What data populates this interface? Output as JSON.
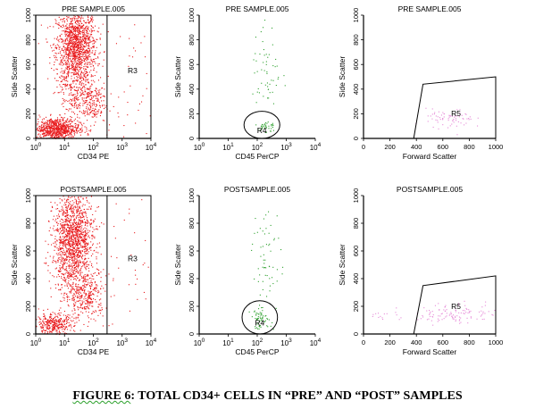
{
  "figure": {
    "caption_prefix": "FIGURE 6",
    "caption_rest": ":  TOTAL CD34+ CELLS IN “PRE” AND “POST” SAMPLES"
  },
  "colors": {
    "red_events": "#e8191c",
    "green_events": "#2ea12e",
    "pink_events": "#e68ad8",
    "gate": "#000000"
  },
  "chart_data": [
    {
      "type": "scatter",
      "title": "PRE SAMPLE.005",
      "xlabel": "CD34 PE",
      "ylabel": "Side Scatter",
      "xscale": "log",
      "xlim": [
        1,
        10000
      ],
      "ylim": [
        0,
        1000
      ],
      "xticks": [
        "10^0",
        "10^1",
        "10^2",
        "10^3",
        "10^4"
      ],
      "yticks": [
        "0",
        "200",
        "400",
        "600",
        "800",
        "1000"
      ],
      "gate": {
        "name": "R3",
        "shape": "rectangle",
        "x_range": [
          300,
          10000
        ],
        "y_range": [
          0,
          1000
        ]
      },
      "series": [
        {
          "color": "#e8191c",
          "clusters": [
            {
              "x_center": 25,
              "y_center": 750,
              "x_spread": 0.35,
              "y_spread": 150,
              "count": 1300
            },
            {
              "x_center": 5,
              "y_center": 80,
              "x_spread": 0.4,
              "y_spread": 45,
              "count": 800
            },
            {
              "x_center": 70,
              "y_center": 300,
              "x_spread": 0.3,
              "y_spread": 90,
              "count": 250
            },
            {
              "x_center": 20,
              "y_center": 450,
              "x_spread": 0.3,
              "y_spread": 150,
              "count": 200
            },
            {
              "x_center": 1500,
              "y_center": 500,
              "x_spread": 0.5,
              "y_spread": 350,
              "count": 40
            }
          ]
        }
      ]
    },
    {
      "type": "scatter",
      "title": "PRE SAMPLE.005",
      "xlabel": "CD45 PerCP",
      "ylabel": "Side Scatter",
      "xscale": "log",
      "xlim": [
        1,
        10000
      ],
      "ylim": [
        0,
        1000
      ],
      "xticks": [
        "10^0",
        "10^1",
        "10^2",
        "10^3",
        "10^4"
      ],
      "yticks": [
        "0",
        "200",
        "400",
        "600",
        "800",
        "1000"
      ],
      "gate": {
        "name": "R4",
        "shape": "ellipse",
        "x_range": [
          35,
          600
        ],
        "y_range": [
          0,
          220
        ]
      },
      "series": [
        {
          "color": "#2ea12e",
          "clusters": [
            {
              "x_center": 200,
              "y_center": 100,
              "x_spread": 0.15,
              "y_spread": 25,
              "count": 35
            },
            {
              "x_center": 200,
              "y_center": 550,
              "x_spread": 0.25,
              "y_spread": 200,
              "count": 55
            }
          ]
        }
      ]
    },
    {
      "type": "scatter",
      "title": "PRE SAMPLE.005",
      "xlabel": "Forward Scatter",
      "ylabel": "Side Scatter",
      "xscale": "linear",
      "xlim": [
        0,
        1000
      ],
      "ylim": [
        0,
        1000
      ],
      "xticks": [
        "0",
        "200",
        "400",
        "600",
        "800",
        "1000"
      ],
      "yticks": [
        "0",
        "200",
        "400",
        "600",
        "800",
        "1000"
      ],
      "gate": {
        "name": "R5",
        "shape": "polygon",
        "vertices": [
          [
            380,
            0
          ],
          [
            450,
            440
          ],
          [
            1000,
            500
          ],
          [
            1000,
            0
          ]
        ]
      },
      "series": [
        {
          "color": "#e68ad8",
          "clusters": [
            {
              "x_center": 650,
              "y_center": 160,
              "x_spread": 90,
              "y_spread": 40,
              "count": 70
            }
          ]
        }
      ]
    },
    {
      "type": "scatter",
      "title": "POSTSAMPLE.005",
      "xlabel": "CD34 PE",
      "ylabel": "Side Scatter",
      "xscale": "log",
      "xlim": [
        1,
        10000
      ],
      "ylim": [
        0,
        1000
      ],
      "xticks": [
        "10^0",
        "10^1",
        "10^2",
        "10^3",
        "10^4"
      ],
      "yticks": [
        "0",
        "200",
        "400",
        "600",
        "800",
        "1000"
      ],
      "gate": {
        "name": "R3",
        "shape": "rectangle",
        "x_range": [
          300,
          10000
        ],
        "y_range": [
          0,
          1000
        ]
      },
      "series": [
        {
          "color": "#e8191c",
          "clusters": [
            {
              "x_center": 20,
              "y_center": 700,
              "x_spread": 0.35,
              "y_spread": 160,
              "count": 1300
            },
            {
              "x_center": 4,
              "y_center": 70,
              "x_spread": 0.35,
              "y_spread": 40,
              "count": 350
            },
            {
              "x_center": 60,
              "y_center": 280,
              "x_spread": 0.3,
              "y_spread": 90,
              "count": 300
            },
            {
              "x_center": 15,
              "y_center": 400,
              "x_spread": 0.3,
              "y_spread": 150,
              "count": 200
            },
            {
              "x_center": 1500,
              "y_center": 450,
              "x_spread": 0.5,
              "y_spread": 350,
              "count": 40
            }
          ]
        }
      ]
    },
    {
      "type": "scatter",
      "title": "POSTSAMPLE.005",
      "xlabel": "CD45 PerCP",
      "ylabel": "Side Scatter",
      "xscale": "log",
      "xlim": [
        1,
        10000
      ],
      "ylim": [
        0,
        1000
      ],
      "xticks": [
        "10^0",
        "10^1",
        "10^2",
        "10^3",
        "10^4"
      ],
      "yticks": [
        "0",
        "200",
        "400",
        "600",
        "800",
        "1000"
      ],
      "gate": {
        "name": "R4",
        "shape": "ellipse",
        "x_range": [
          30,
          500
        ],
        "y_range": [
          0,
          240
        ]
      },
      "series": [
        {
          "color": "#2ea12e",
          "clusters": [
            {
              "x_center": 130,
              "y_center": 110,
              "x_spread": 0.18,
              "y_spread": 35,
              "count": 60
            },
            {
              "x_center": 200,
              "y_center": 550,
              "x_spread": 0.25,
              "y_spread": 200,
              "count": 60
            }
          ]
        }
      ]
    },
    {
      "type": "scatter",
      "title": "POSTSAMPLE.005",
      "xlabel": "Forward Scatter",
      "ylabel": "Side Scatter",
      "xscale": "linear",
      "xlim": [
        0,
        1000
      ],
      "ylim": [
        0,
        1000
      ],
      "xticks": [
        "0",
        "200",
        "400",
        "600",
        "800",
        "1000"
      ],
      "yticks": [
        "0",
        "200",
        "400",
        "600",
        "800",
        "1000"
      ],
      "gate": {
        "name": "R5",
        "shape": "polygon",
        "vertices": [
          [
            380,
            0
          ],
          [
            450,
            350
          ],
          [
            1000,
            420
          ],
          [
            1000,
            0
          ]
        ]
      },
      "series": [
        {
          "color": "#e68ad8",
          "clusters": [
            {
              "x_center": 700,
              "y_center": 150,
              "x_spread": 150,
              "y_spread": 35,
              "count": 110
            },
            {
              "x_center": 200,
              "y_center": 130,
              "x_spread": 100,
              "y_spread": 15,
              "count": 15
            }
          ]
        }
      ]
    }
  ]
}
